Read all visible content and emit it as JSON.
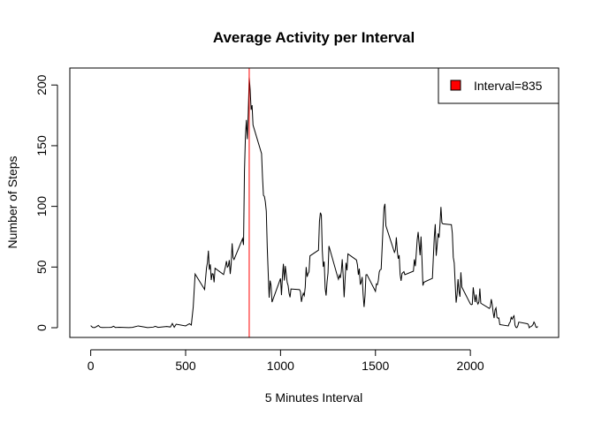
{
  "chart_data": {
    "type": "line",
    "title": "Average Activity per Interval",
    "xlabel": "5 Minutes Interval",
    "ylabel": "Number of Steps",
    "xlim": [
      -110,
      2465
    ],
    "ylim": [
      -8,
      214
    ],
    "x_ticks": [
      0,
      500,
      1000,
      1500,
      2000
    ],
    "y_ticks": [
      0,
      50,
      100,
      150,
      200
    ],
    "grid": false,
    "legend": {
      "placement": "top-right",
      "entries": [
        {
          "label": "Interval=835",
          "color": "#FF0000"
        }
      ]
    },
    "vline": {
      "x": 835,
      "color": "#FF0000"
    },
    "series": [
      {
        "color": "#000000",
        "points": [
          [
            0,
            1.7
          ],
          [
            10,
            0.3
          ],
          [
            20,
            0.1
          ],
          [
            30,
            0.9
          ],
          [
            40,
            1.9
          ],
          [
            50,
            0.4
          ],
          [
            60,
            0.2
          ],
          [
            100,
            0.3
          ],
          [
            110,
            0.4
          ],
          [
            120,
            1.2
          ],
          [
            130,
            0.2
          ],
          [
            150,
            0.4
          ],
          [
            200,
            0.1
          ],
          [
            220,
            0.3
          ],
          [
            250,
            1.5
          ],
          [
            300,
            0.1
          ],
          [
            330,
            0.5
          ],
          [
            340,
            1.2
          ],
          [
            355,
            0.3
          ],
          [
            400,
            1.0
          ],
          [
            420,
            0.6
          ],
          [
            430,
            3.5
          ],
          [
            440,
            0.4
          ],
          [
            450,
            2.9
          ],
          [
            500,
            1.5
          ],
          [
            520,
            3.3
          ],
          [
            530,
            2.2
          ],
          [
            540,
            17.0
          ],
          [
            550,
            44.2
          ],
          [
            600,
            31.5
          ],
          [
            610,
            49.3
          ],
          [
            615,
            53.8
          ],
          [
            620,
            63.5
          ],
          [
            625,
            47.8
          ],
          [
            630,
            52.2
          ],
          [
            635,
            39.3
          ],
          [
            640,
            44.5
          ],
          [
            645,
            44.2
          ],
          [
            650,
            37.4
          ],
          [
            655,
            49.0
          ],
          [
            700,
            43.8
          ],
          [
            710,
            50.5
          ],
          [
            715,
            54.9
          ],
          [
            720,
            49.9
          ],
          [
            725,
            50.9
          ],
          [
            730,
            55.7
          ],
          [
            735,
            44.3
          ],
          [
            740,
            52.3
          ],
          [
            745,
            69.5
          ],
          [
            750,
            57.8
          ],
          [
            755,
            56.2
          ],
          [
            800,
            73.4
          ],
          [
            805,
            68.2
          ],
          [
            810,
            129.4
          ],
          [
            815,
            157.5
          ],
          [
            820,
            171.2
          ],
          [
            825,
            155.4
          ],
          [
            830,
            177.3
          ],
          [
            835,
            206.2
          ],
          [
            840,
            195.9
          ],
          [
            845,
            179.6
          ],
          [
            850,
            183.4
          ],
          [
            855,
            167.0
          ],
          [
            900,
            143.5
          ],
          [
            905,
            124.0
          ],
          [
            910,
            109.1
          ],
          [
            915,
            108.1
          ],
          [
            920,
            103.7
          ],
          [
            925,
            95.97
          ],
          [
            930,
            66.2
          ],
          [
            935,
            45.2
          ],
          [
            940,
            24.8
          ],
          [
            945,
            38.8
          ],
          [
            950,
            34.98
          ],
          [
            955,
            21.1
          ],
          [
            1000,
            40.6
          ],
          [
            1005,
            26.9
          ],
          [
            1010,
            42.4
          ],
          [
            1015,
            52.7
          ],
          [
            1020,
            38.9
          ],
          [
            1025,
            50.8
          ],
          [
            1030,
            44.3
          ],
          [
            1035,
            37.4
          ],
          [
            1040,
            34.7
          ],
          [
            1045,
            28.3
          ],
          [
            1050,
            25.1
          ],
          [
            1055,
            31.9
          ],
          [
            1100,
            31.4
          ],
          [
            1105,
            29.7
          ],
          [
            1110,
            21.3
          ],
          [
            1115,
            25.5
          ],
          [
            1120,
            28.4
          ],
          [
            1125,
            26.5
          ],
          [
            1130,
            33.3
          ],
          [
            1135,
            49.98
          ],
          [
            1140,
            42.0
          ],
          [
            1145,
            44.6
          ],
          [
            1150,
            46.0
          ],
          [
            1155,
            59.2
          ],
          [
            1200,
            63.9
          ],
          [
            1205,
            87.7
          ],
          [
            1210,
            94.8
          ],
          [
            1215,
            92.8
          ],
          [
            1220,
            63.4
          ],
          [
            1225,
            50.2
          ],
          [
            1230,
            54.5
          ],
          [
            1235,
            32.4
          ],
          [
            1240,
            26.5
          ],
          [
            1245,
            37.7
          ],
          [
            1250,
            45.1
          ],
          [
            1255,
            67.3
          ],
          [
            1300,
            42.3
          ],
          [
            1305,
            39.9
          ],
          [
            1310,
            43.3
          ],
          [
            1315,
            40.98
          ],
          [
            1320,
            46.2
          ],
          [
            1325,
            56.4
          ],
          [
            1330,
            42.75
          ],
          [
            1335,
            25.1
          ],
          [
            1340,
            39.96
          ],
          [
            1345,
            53.5
          ],
          [
            1350,
            47.3
          ],
          [
            1355,
            60.8
          ],
          [
            1400,
            55.8
          ],
          [
            1405,
            51.96
          ],
          [
            1410,
            43.6
          ],
          [
            1415,
            48.7
          ],
          [
            1420,
            35.5
          ],
          [
            1425,
            37.5
          ],
          [
            1430,
            41.8
          ],
          [
            1435,
            27.5
          ],
          [
            1440,
            17.1
          ],
          [
            1445,
            26.1
          ],
          [
            1450,
            43.6
          ],
          [
            1455,
            43.8
          ],
          [
            1500,
            30.0
          ],
          [
            1505,
            36.1
          ],
          [
            1510,
            35.5
          ],
          [
            1515,
            38.8
          ],
          [
            1520,
            45.96
          ],
          [
            1525,
            47.8
          ],
          [
            1530,
            48.1
          ],
          [
            1535,
            65.3
          ],
          [
            1540,
            82.9
          ],
          [
            1545,
            98.7
          ],
          [
            1550,
            102.1
          ],
          [
            1555,
            83.96
          ],
          [
            1600,
            62.1
          ],
          [
            1605,
            64.1
          ],
          [
            1610,
            74.5
          ],
          [
            1615,
            63.2
          ],
          [
            1620,
            56.9
          ],
          [
            1625,
            59.8
          ],
          [
            1630,
            43.9
          ],
          [
            1635,
            38.6
          ],
          [
            1640,
            44.7
          ],
          [
            1645,
            45.5
          ],
          [
            1650,
            46.2
          ],
          [
            1655,
            43.7
          ],
          [
            1700,
            46.6
          ],
          [
            1705,
            56.3
          ],
          [
            1710,
            50.7
          ],
          [
            1715,
            61.2
          ],
          [
            1720,
            72.7
          ],
          [
            1725,
            78.9
          ],
          [
            1730,
            68.9
          ],
          [
            1735,
            59.7
          ],
          [
            1740,
            75.1
          ],
          [
            1745,
            56.5
          ],
          [
            1750,
            34.8
          ],
          [
            1755,
            37.5
          ],
          [
            1800,
            40.7
          ],
          [
            1805,
            58.0
          ],
          [
            1810,
            74.7
          ],
          [
            1815,
            85.3
          ],
          [
            1820,
            59.3
          ],
          [
            1825,
            67.8
          ],
          [
            1830,
            77.7
          ],
          [
            1835,
            74.2
          ],
          [
            1840,
            85.3
          ],
          [
            1845,
            99.5
          ],
          [
            1850,
            86.6
          ],
          [
            1855,
            85.6
          ],
          [
            1900,
            84.9
          ],
          [
            1905,
            77.8
          ],
          [
            1910,
            58.0
          ],
          [
            1915,
            53.4
          ],
          [
            1920,
            36.3
          ],
          [
            1925,
            20.7
          ],
          [
            1930,
            27.4
          ],
          [
            1935,
            40.0
          ],
          [
            1940,
            30.2
          ],
          [
            1945,
            25.5
          ],
          [
            1950,
            45.7
          ],
          [
            1955,
            33.5
          ],
          [
            2000,
            19.6
          ],
          [
            2005,
            19.0
          ],
          [
            2010,
            19.3
          ],
          [
            2015,
            33.3
          ],
          [
            2020,
            26.8
          ],
          [
            2025,
            21.2
          ],
          [
            2030,
            27.3
          ],
          [
            2035,
            21.3
          ],
          [
            2040,
            19.5
          ],
          [
            2045,
            21.3
          ],
          [
            2050,
            32.3
          ],
          [
            2055,
            20.2
          ],
          [
            2100,
            15.9
          ],
          [
            2105,
            17.2
          ],
          [
            2110,
            23.5
          ],
          [
            2115,
            19.2
          ],
          [
            2120,
            12.5
          ],
          [
            2125,
            8.0
          ],
          [
            2130,
            14.7
          ],
          [
            2135,
            16.3
          ],
          [
            2140,
            8.7
          ],
          [
            2145,
            7.8
          ],
          [
            2150,
            8.1
          ],
          [
            2155,
            2.6
          ],
          [
            2200,
            1.5
          ],
          [
            2205,
            3.7
          ],
          [
            2210,
            4.8
          ],
          [
            2215,
            8.5
          ],
          [
            2220,
            7.1
          ],
          [
            2225,
            8.7
          ],
          [
            2230,
            9.8
          ],
          [
            2235,
            2.2
          ],
          [
            2240,
            0.3
          ],
          [
            2245,
            0.1
          ],
          [
            2250,
            1.6
          ],
          [
            2255,
            4.6
          ],
          [
            2300,
            3.3
          ],
          [
            2305,
            2.8
          ],
          [
            2310,
            0.0
          ],
          [
            2315,
            0.8
          ],
          [
            2320,
            0.96
          ],
          [
            2325,
            1.6
          ],
          [
            2330,
            2.6
          ],
          [
            2335,
            4.7
          ],
          [
            2340,
            3.3
          ],
          [
            2345,
            0.6
          ],
          [
            2350,
            0.2
          ],
          [
            2355,
            1.1
          ]
        ]
      }
    ]
  }
}
